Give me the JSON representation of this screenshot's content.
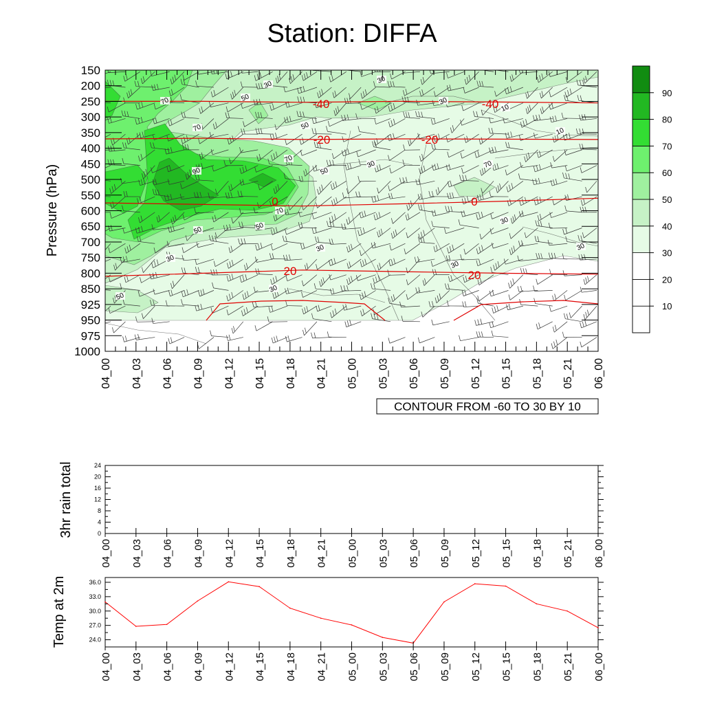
{
  "title": "Station: DIFFA",
  "chart_data": [
    {
      "type": "heatmap",
      "name": "time-pressure cross section",
      "ylabel": "Pressure (hPa)",
      "pressure_levels": [
        "150",
        "200",
        "250",
        "300",
        "350",
        "400",
        "450",
        "500",
        "550",
        "600",
        "650",
        "700",
        "750",
        "800",
        "850",
        "925",
        "950",
        "975",
        "1000"
      ],
      "x_ticks": [
        "04_00",
        "04_03",
        "04_06",
        "04_09",
        "04_12",
        "04_15",
        "04_18",
        "04_21",
        "05_00",
        "05_03",
        "05_06",
        "05_09",
        "05_12",
        "05_15",
        "05_18",
        "05_21",
        "06_00"
      ],
      "colorbar": {
        "levels": [
          "10",
          "20",
          "30",
          "40",
          "50",
          "60",
          "70",
          "80",
          "90"
        ],
        "colors": [
          "#ffffff",
          "#ffffff",
          "#ffffff",
          "#e6fbe6",
          "#c6f2c6",
          "#9ff09f",
          "#6ef06e",
          "#33dd33",
          "#22b822",
          "#118c11"
        ]
      },
      "humidity_contour_labels": [
        "70",
        "50",
        "30",
        "30",
        "30",
        "10",
        "10",
        "70",
        "50",
        "90",
        "70",
        "50",
        "30",
        "70",
        "70",
        "50",
        "50",
        "30",
        "30",
        "30",
        "30",
        "30",
        "30",
        "50"
      ],
      "temperature_contours": [
        {
          "value": -40,
          "pressure": [
            250,
            250,
            253,
            250,
            252,
            255
          ]
        },
        {
          "value": -20,
          "pressure": [
            370,
            368,
            372,
            370,
            371,
            372
          ]
        },
        {
          "value": 0,
          "pressure": [
            575,
            580,
            585,
            578,
            570,
            560
          ]
        },
        {
          "value": 20,
          "pressure": [
            810,
            800,
            790,
            795,
            800,
            803
          ]
        }
      ],
      "temperature_contour_labels": [
        "-40",
        "-40",
        "-20",
        "-20",
        "0",
        "0",
        "20",
        "20"
      ],
      "info_label": "CONTOUR FROM -60 TO 30 BY 10"
    },
    {
      "type": "bar",
      "name": "3hr rain total",
      "ylabel": "3hr rain total",
      "ylim": [
        0,
        24
      ],
      "y_ticks": [
        "0",
        "4",
        "8",
        "12",
        "16",
        "20",
        "24"
      ],
      "x_ticks": [
        "04_00",
        "04_03",
        "04_06",
        "04_09",
        "04_12",
        "04_15",
        "04_18",
        "04_21",
        "05_00",
        "05_03",
        "05_06",
        "05_09",
        "05_12",
        "05_15",
        "05_18",
        "05_21",
        "06_00"
      ],
      "values": [
        0,
        0,
        0,
        0,
        0,
        0,
        0,
        0,
        0,
        0,
        0,
        0,
        0,
        0,
        0,
        0,
        0
      ]
    },
    {
      "type": "line",
      "name": "Temp at 2m",
      "ylabel": "Temp at 2m",
      "ylim": [
        22.5,
        37.0
      ],
      "y_ticks": [
        "24.0",
        "27.0",
        "30.0",
        "33.0",
        "36.0"
      ],
      "x_ticks": [
        "04_00",
        "04_03",
        "04_06",
        "04_09",
        "04_12",
        "04_15",
        "04_18",
        "04_21",
        "05_00",
        "05_03",
        "05_06",
        "05_09",
        "05_12",
        "05_15",
        "05_18",
        "05_21",
        "06_00"
      ],
      "values": [
        31.9,
        26.8,
        27.2,
        32.1,
        36.1,
        35.1,
        30.6,
        28.5,
        27.1,
        24.5,
        23.3,
        31.9,
        35.7,
        35.2,
        31.5,
        30.0,
        26.5
      ],
      "color": "#ff0000"
    }
  ]
}
